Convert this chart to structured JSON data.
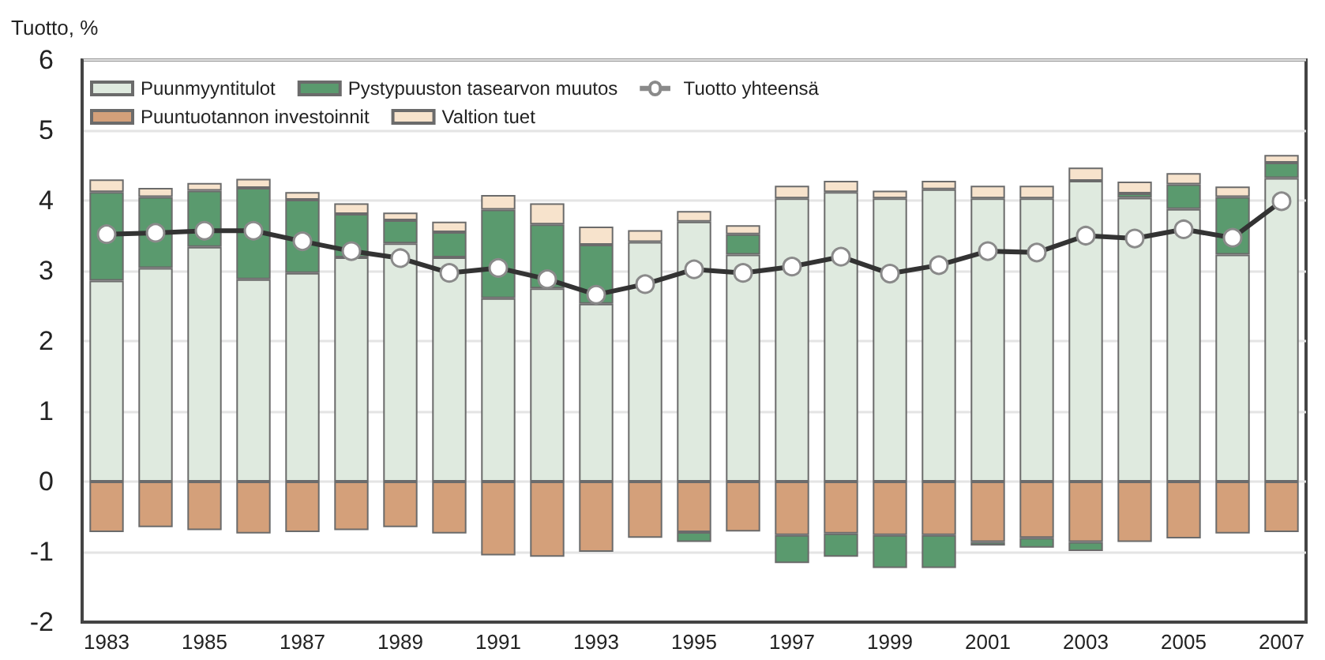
{
  "chart_data": {
    "type": "bar",
    "ylabel": "Tuotto, %",
    "stacked": true,
    "categories": [
      "1983",
      null,
      "1985",
      null,
      "1987",
      null,
      "1989",
      null,
      "1991",
      null,
      "1993",
      null,
      "1995",
      null,
      "1997",
      null,
      "1999",
      null,
      "2001",
      null,
      "2003",
      null,
      "2005",
      null,
      "2007"
    ],
    "series": [
      {
        "name": "Puunmyyntitulot",
        "color": "#dfeadf",
        "values": [
          2.86,
          3.04,
          3.34,
          2.88,
          2.97,
          3.19,
          3.39,
          3.19,
          2.61,
          2.75,
          2.53,
          3.41,
          3.7,
          3.23,
          4.03,
          4.12,
          4.03,
          4.16,
          4.03,
          4.03,
          4.28,
          4.04,
          3.88,
          3.23,
          4.32
        ]
      },
      {
        "name": "Puuntuotannon investoinnit",
        "color": "#d4a07a",
        "values": [
          -0.72,
          -0.65,
          -0.69,
          -0.74,
          -0.72,
          -0.69,
          -0.65,
          -0.74,
          -1.05,
          -1.07,
          -1.0,
          -0.8,
          -0.72,
          -0.71,
          -0.76,
          -0.74,
          -0.76,
          -0.76,
          -0.86,
          -0.8,
          -0.86,
          -0.86,
          -0.81,
          -0.74,
          -0.72
        ]
      },
      {
        "name": "Pystypuuston tasearvon muutos",
        "color": "#5a9a6e",
        "values": [
          1.26,
          1.01,
          0.8,
          1.3,
          1.04,
          0.62,
          0.33,
          0.36,
          1.26,
          0.91,
          0.84,
          null,
          -0.14,
          0.29,
          -0.4,
          -0.33,
          -0.47,
          -0.47,
          -0.05,
          -0.14,
          -0.13,
          0.06,
          0.35,
          0.82,
          0.22
        ]
      },
      {
        "name": "Valtion tuet",
        "color": "#f7e3cc",
        "values": [
          0.18,
          0.13,
          0.11,
          0.13,
          0.11,
          0.15,
          0.11,
          0.15,
          0.21,
          0.3,
          0.26,
          0.17,
          0.15,
          0.13,
          0.18,
          0.16,
          0.11,
          0.12,
          0.18,
          0.18,
          0.19,
          0.17,
          0.16,
          0.15,
          0.11
        ]
      },
      {
        "name": "Tuotto yhteensä",
        "type": "line",
        "color": "#333333",
        "values": [
          3.52,
          3.54,
          3.57,
          3.57,
          3.42,
          3.28,
          3.18,
          2.97,
          3.04,
          2.88,
          2.66,
          2.81,
          3.02,
          2.97,
          3.06,
          3.2,
          2.96,
          3.08,
          3.28,
          3.26,
          3.5,
          3.46,
          3.59,
          3.47,
          3.99
        ]
      }
    ],
    "ylim": [
      -2,
      6
    ],
    "yticks": [
      -2,
      -1,
      0,
      1,
      2,
      3,
      4,
      5,
      6
    ],
    "grid": "y",
    "legend": "top left",
    "marker": "circle"
  }
}
